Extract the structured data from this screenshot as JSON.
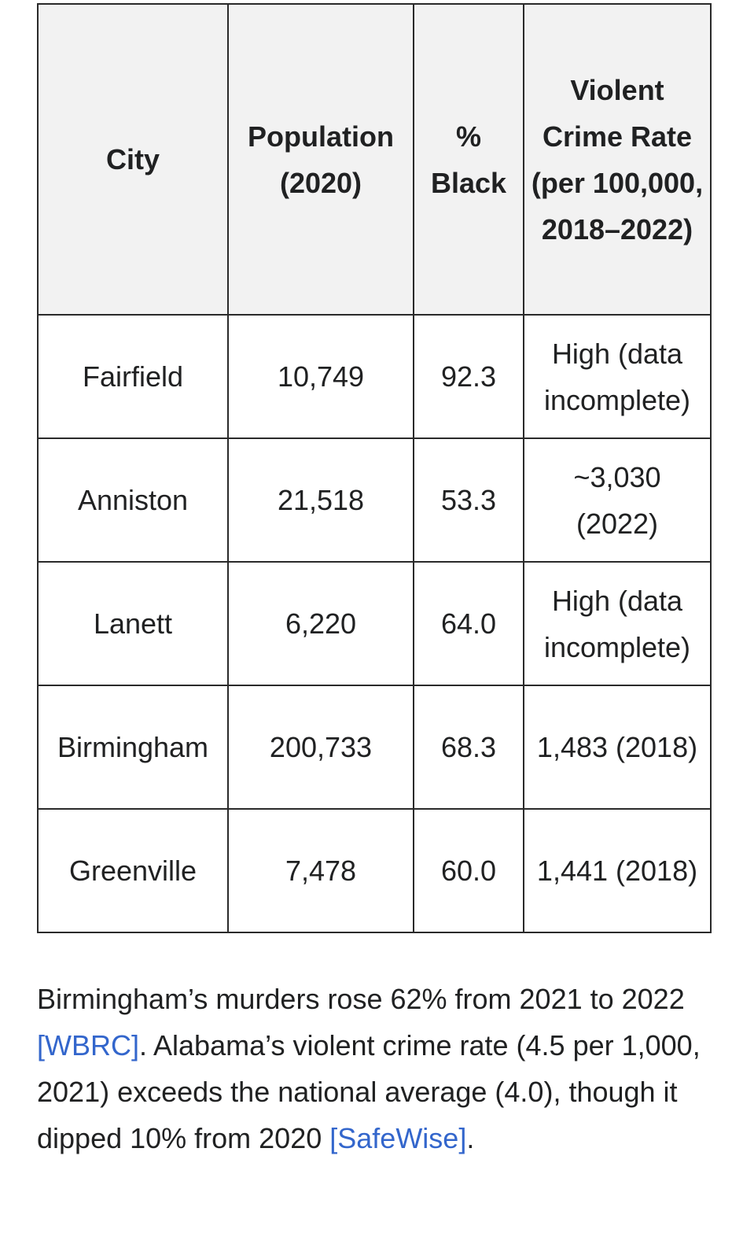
{
  "table": {
    "headers": {
      "city": "City",
      "population": "Population (2020)",
      "black": "% Black",
      "rate": "Violent Crime Rate (per 100,000, 2018–2022)"
    },
    "rows": [
      {
        "city": "Fairfield",
        "population": "10,749",
        "black": "92.3",
        "rate": "High (data incomplete)"
      },
      {
        "city": "Anniston",
        "population": "21,518",
        "black": "53.3",
        "rate": "~3,030 (2022)"
      },
      {
        "city": "Lanett",
        "population": "6,220",
        "black": "64.0",
        "rate": "High (data incomplete)"
      },
      {
        "city": "Birmingham",
        "population": "200,733",
        "black": "68.3",
        "rate": "1,483 (2018)"
      },
      {
        "city": "Greenville",
        "population": "7,478",
        "black": "60.0",
        "rate": "1,441 (2018)"
      }
    ]
  },
  "note": {
    "text_1": "Birmingham’s murders rose 62% from 2021 to 2022 ",
    "link_1": "[WBRC]",
    "text_2": ". Alabama’s violent crime rate (4.5 per 1,000, 2021) exceeds the national average (4.0), though it dipped 10% from 2020 ",
    "link_2": "[SafeWise]",
    "text_3": "."
  },
  "colors": {
    "link": "#3366cc",
    "header_bg": "#f2f2f2",
    "border": "#2a2a2a",
    "text": "#202122"
  }
}
